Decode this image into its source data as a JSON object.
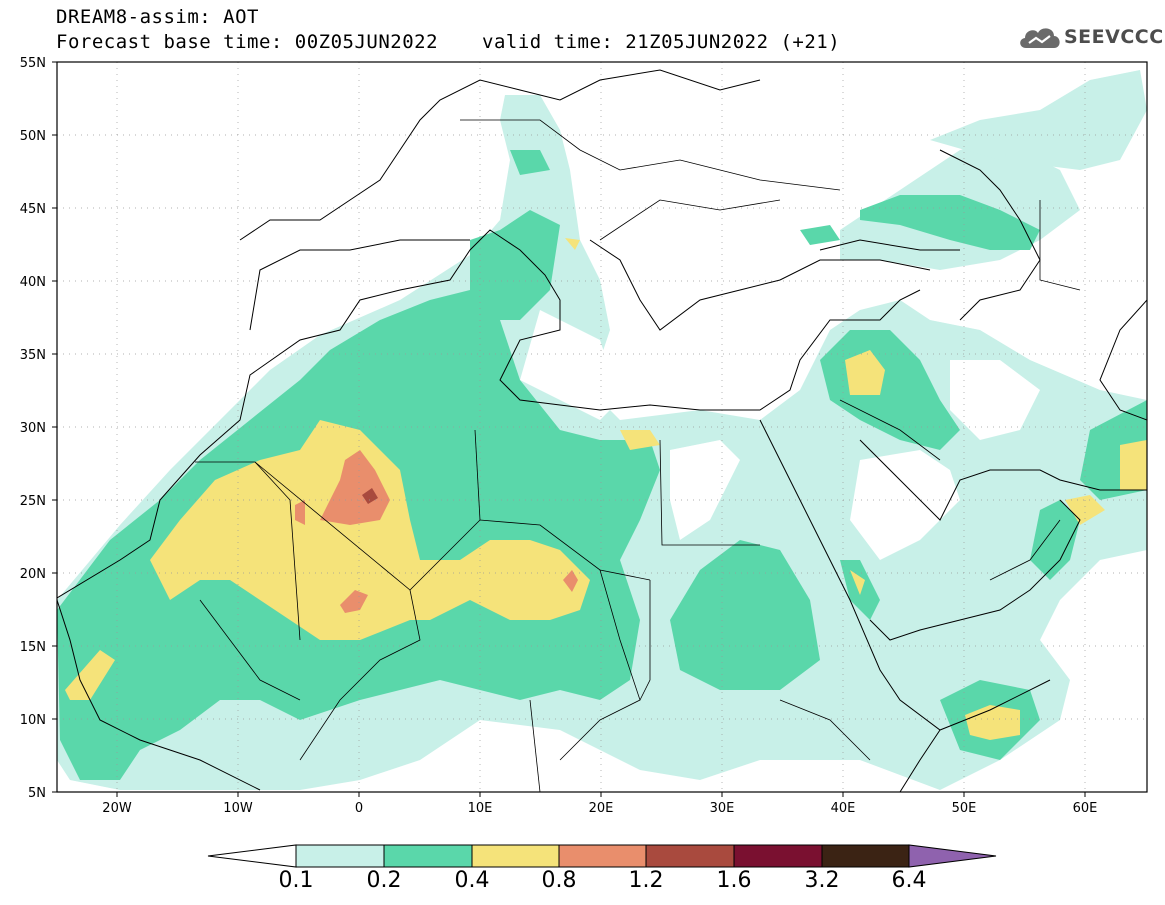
{
  "header": {
    "title": "DREAM8-assim: AOT",
    "base_time": "Forecast base time: 00Z05JUN2022",
    "valid_time": "valid time: 21Z05JUN2022 (+21)",
    "logo_text": "SEEVCCC",
    "logo_icon": "cloud-icon"
  },
  "map": {
    "lat_labels": [
      "55N",
      "50N",
      "45N",
      "40N",
      "35N",
      "30N",
      "25N",
      "20N",
      "15N",
      "10N",
      "5N"
    ],
    "lon_labels": [
      "20W",
      "10W",
      "0",
      "10E",
      "20E",
      "30E",
      "40E",
      "50E",
      "60E"
    ],
    "lon_range": [
      -25,
      65
    ],
    "lat_range": [
      5,
      55
    ],
    "grid": "dotted",
    "land_outline_color": "#000000"
  },
  "colorbar": {
    "levels": [
      "0.1",
      "0.2",
      "0.4",
      "0.8",
      "1.2",
      "1.6",
      "3.2",
      "6.4"
    ],
    "colors": [
      "#ffffff",
      "#c8f0e8",
      "#5ad7aa",
      "#f5e37a",
      "#e98e6c",
      "#a94a3e",
      "#7a1030",
      "#3b2314",
      "#8f62ae"
    ]
  }
}
